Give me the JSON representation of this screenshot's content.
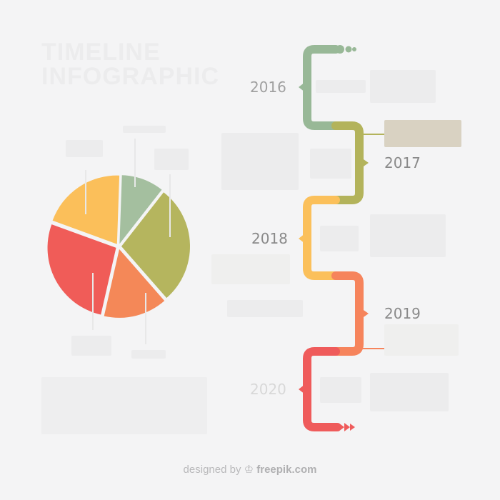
{
  "title_line1": "TIMELINE",
  "title_line2": "INFOGRAPHIC",
  "timeline": {
    "years": [
      "2016",
      "2017",
      "2018",
      "2019",
      "2020"
    ]
  },
  "pie": {
    "slices": [
      {
        "value": 10,
        "color": "#a4bf9f"
      },
      {
        "value": 28,
        "color": "#b5b55e"
      },
      {
        "value": 15,
        "color": "#f48858"
      },
      {
        "value": 27,
        "color": "#f05c58"
      },
      {
        "value": 20,
        "color": "#fbbf5a"
      }
    ]
  },
  "colors": {
    "green": "#98b897",
    "olive": "#b3b35b",
    "yellow": "#fbc05b",
    "orange": "#f6845c",
    "red": "#ef5b5b",
    "tan_box": "#d9d2c2"
  },
  "credit": {
    "prefix": "designed by",
    "brand": "freepik.com"
  }
}
